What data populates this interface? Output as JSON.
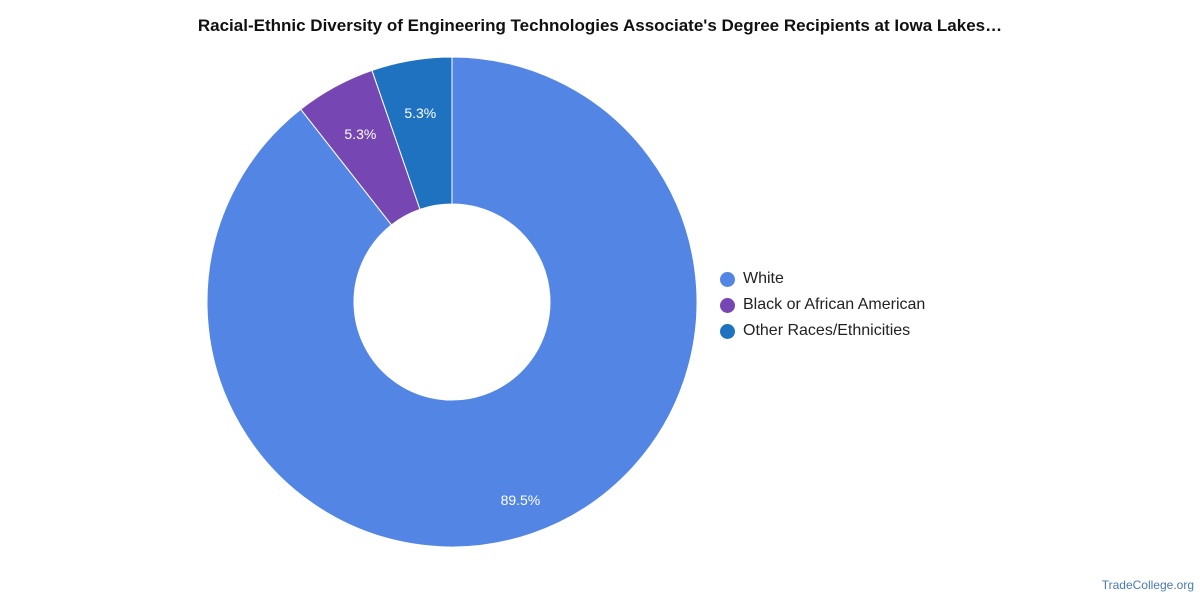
{
  "chart_data": {
    "type": "pie",
    "title": "Racial-Ethnic Diversity of Engineering Technologies Associate's Degree Recipients at Iowa Lakes…",
    "categories": [
      "White",
      "Black or African American",
      "Other Races/Ethnicities"
    ],
    "values": [
      89.5,
      5.3,
      5.3
    ],
    "labels": [
      "89.5%",
      "5.3%",
      "5.3%"
    ],
    "colors": [
      "#5386e4",
      "#7647b3",
      "#1f72c0"
    ],
    "donut": true,
    "legend_position": "right"
  },
  "watermark": "TradeCollege.org"
}
